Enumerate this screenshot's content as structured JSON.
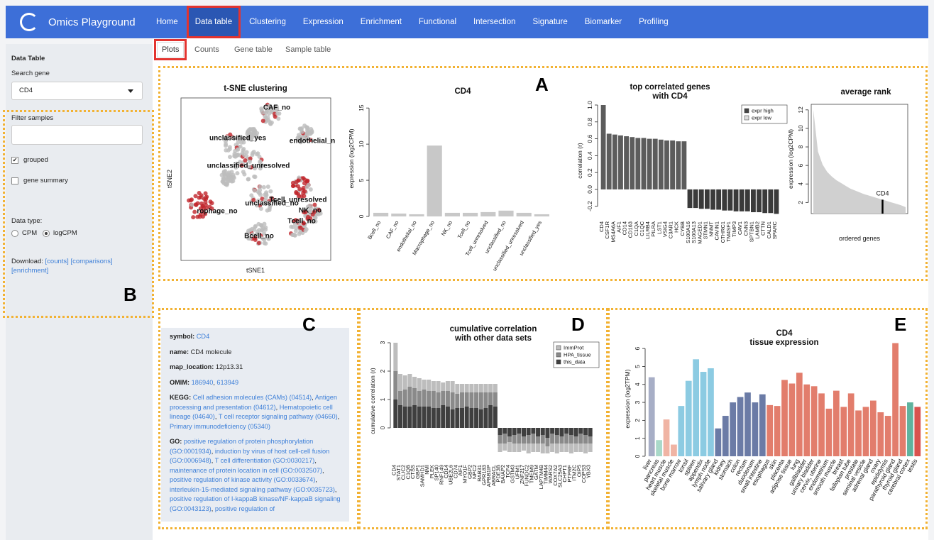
{
  "ui": {
    "brand": "Omics Playground",
    "nav": [
      "Home",
      "Data table",
      "Clustering",
      "Expression",
      "Enrichment",
      "Functional",
      "Intersection",
      "Signature",
      "Biomarker",
      "Profiling"
    ],
    "subtabs": [
      "Plots",
      "Counts",
      "Gene table",
      "Sample table"
    ],
    "sidebar": {
      "heading": "Data Table",
      "search_label": "Search gene",
      "search_value": "CD4",
      "filter_label": "Filter samples",
      "checkboxes": [
        {
          "label": "grouped",
          "checked": true
        },
        {
          "label": "gene summary",
          "checked": false
        }
      ],
      "datatype_label": "Data type:",
      "radios": [
        {
          "label": "CPM",
          "checked": false
        },
        {
          "label": "logCPM",
          "checked": true
        }
      ],
      "download_label": "Download:",
      "downloads": [
        "[counts]",
        "[comparisons]",
        "[enrichment]"
      ]
    },
    "panel_labels": [
      "A",
      "B",
      "C",
      "D",
      "E"
    ]
  },
  "gene_info": {
    "symbol": {
      "label": "symbol",
      "value": "CD4"
    },
    "name": {
      "label": "name",
      "value": "CD4 molecule"
    },
    "map_location": {
      "label": "map_location",
      "value": "12p13.31"
    },
    "omim": {
      "label": "OMIM",
      "links": [
        "186940",
        "613949"
      ]
    },
    "kegg": {
      "label": "KEGG",
      "links": [
        "Cell adhesion molecules (CAMs) (04514)",
        "Antigen processing and presentation (04612)",
        "Hematopoietic cell lineage (04640)",
        "T cell receptor signaling pathway (04660)",
        "Primary immunodeficiency (05340)"
      ]
    },
    "go": {
      "label": "GO",
      "links": [
        "positive regulation of protein phosphorylation (GO:0001934)",
        "induction by virus of host cell-cell fusion (GO:0006948)",
        "T cell differentiation (GO:0030217)",
        "maintenance of protein location in cell (GO:0032507)",
        "positive regulation of kinase activity (GO:0033674)",
        "interleukin-15-mediated signaling pathway (GO:0035723)",
        "positive regulation of I-kappaB kinase/NF-kappaB signaling (GO:0043123)",
        "positive regulation of"
      ]
    }
  },
  "chart_data": [
    {
      "type": "scatter",
      "title": "t-SNE clustering",
      "xlabel": "tSNE1",
      "ylabel": "tSNE2",
      "annotations": [
        "CAF_no",
        "unclassified_yes",
        "endothelial_n",
        "unclassified_unresolved",
        "Tcell_unresolved",
        "unclassified_no",
        "NK_no",
        "rophage_no",
        "Tcell_no",
        "Bcell_no"
      ],
      "colors": [
        "#bdbdbd",
        "#c0262c"
      ]
    },
    {
      "type": "bar",
      "title": "CD4",
      "ylabel": "expression (log2CPM)",
      "categories": [
        "Bcell_no",
        "CAF_no",
        "endothelial_no",
        "Macrophage_no",
        "NK_no",
        "Tcell_no",
        "Tcell_unresolved",
        "unclassified_no",
        "unclassified_unresolved",
        "unclassified_yes"
      ],
      "values": [
        0.5,
        0.4,
        0.3,
        9.8,
        0.5,
        0.5,
        0.6,
        0.8,
        0.5,
        0.3
      ],
      "color": "#c8c8c8",
      "ylim": [
        0,
        16
      ],
      "yticks": [
        0,
        5,
        10,
        15
      ]
    },
    {
      "type": "bar",
      "title": [
        "top correlated genes",
        "with CD4"
      ],
      "ylabel": "correlation (r)",
      "categories": [
        "CD4",
        "CSF1R",
        "MS4A6A",
        "AIF1",
        "CD14",
        "CD163",
        "C1QA",
        "C1QC",
        "LILRB4",
        "PILRA",
        "LST1",
        "VSIG4",
        "C3AR1",
        "HCK",
        "CYBB",
        "S100A16",
        "S100A13",
        "MAGED1",
        "STMN1",
        "NNMT",
        "CAVIN1",
        "CTHRC1",
        "TM4SF1",
        "TIMP3",
        "CAV1",
        "CNN3",
        "SPTBN1",
        "LAMB2",
        "CTTN",
        "CALD1",
        "SPARC"
      ],
      "values": [
        1.0,
        0.66,
        0.65,
        0.64,
        0.63,
        0.62,
        0.61,
        0.61,
        0.6,
        0.6,
        0.59,
        0.58,
        0.58,
        0.57,
        0.57,
        -0.22,
        -0.22,
        -0.23,
        -0.23,
        -0.24,
        -0.24,
        -0.25,
        -0.25,
        -0.26,
        -0.26,
        -0.26,
        -0.27,
        -0.27,
        -0.28,
        -0.28,
        -0.29
      ],
      "color": "#5c5c5c",
      "negative_color": "#3a3a3a",
      "legend": [
        {
          "name": "expr high",
          "color": "#444444"
        },
        {
          "name": "expr low",
          "color": "#dddddd"
        }
      ],
      "ylim": [
        -0.32,
        1.0
      ],
      "yticks": [
        -0.2,
        {
          "value": 0,
          "label": "0.0"
        },
        0.2,
        0.4,
        0.6,
        0.8,
        {
          "value": 1.0,
          "label": "1.0"
        }
      ]
    },
    {
      "type": "area",
      "title": "average rank",
      "ylabel": "expression (log2CPM)",
      "xlabel": "ordered genes",
      "values": [
        12,
        7.5,
        6.1,
        5.3,
        4.8,
        4.4,
        4.1,
        3.8,
        3.5,
        3.3,
        3.1,
        2.9,
        2.75,
        2.6,
        2.45,
        2.3,
        2.15,
        2.0,
        1.85,
        1.7,
        1.5
      ],
      "color": "#d0d0d0",
      "highlight": {
        "label": "CD4",
        "value": 2.3
      },
      "ylim": [
        0.8,
        12.6
      ],
      "yticks": [
        2,
        4,
        6,
        8,
        10,
        12
      ]
    },
    {
      "type": "stacked_bar",
      "title": [
        "cumulative correlation",
        "with other data sets"
      ],
      "ylabel": "cumulative correlation (r)",
      "categories": [
        "CD4",
        "STAT1",
        "CLIC2",
        "C1QB",
        "CTSS",
        "GBP1",
        "SAMHD1",
        "NMI",
        "PLEK",
        "SP140",
        "RNF149",
        "CD14",
        "UBE2L6",
        "CD74",
        "AIF1",
        "MYO1F",
        "GBP2",
        "NPC2",
        "RAB31",
        "GPR183",
        "APBB1IP",
        "ABRACL",
        "PDE3B",
        "BAIAP2",
        "TCF4",
        "GSTM3",
        "UFM1",
        "ZNF217",
        "FUNDC2",
        "TMEM9",
        "GATM",
        "LAPTM4B",
        "TIMM44",
        "WARS2",
        "COX7A2",
        "SLC25A3",
        "CHPT1",
        "PTPRF",
        "ITM2C",
        "OIP5",
        "COPS3",
        "YBX3"
      ],
      "series": [
        {
          "name": "this_data",
          "color": "#3f3f3f",
          "values": [
            1.0,
            0.8,
            0.75,
            0.75,
            0.8,
            0.75,
            0.75,
            0.75,
            0.7,
            0.7,
            0.8,
            0.75,
            0.65,
            0.7,
            0.7,
            0.75,
            0.7,
            0.7,
            0.65,
            0.7,
            0.8,
            0.75,
            -0.25,
            -0.2,
            -0.3,
            -0.25,
            -0.2,
            -0.3,
            -0.25,
            -0.2,
            -0.3,
            -0.25,
            -0.35,
            -0.2,
            -0.25,
            -0.3,
            -0.2,
            -0.25,
            -0.3,
            -0.2,
            -0.25,
            -0.3
          ]
        },
        {
          "name": "HPA_tissue",
          "color": "#8a8a8a",
          "values": [
            1.0,
            0.5,
            0.6,
            0.7,
            0.6,
            0.55,
            0.6,
            0.55,
            0.6,
            0.55,
            0.5,
            0.55,
            0.6,
            0.5,
            0.55,
            0.5,
            0.55,
            0.55,
            0.6,
            0.55,
            0.45,
            0.5,
            -0.3,
            -0.35,
            -0.2,
            -0.3,
            -0.35,
            -0.25,
            -0.3,
            -0.35,
            -0.25,
            -0.3,
            -0.3,
            -0.35,
            -0.3,
            -0.25,
            -0.35,
            -0.3,
            -0.25,
            -0.35,
            -0.3,
            -0.25
          ]
        },
        {
          "name": "ImmProt",
          "color": "#bdbdbd",
          "values": [
            1.0,
            0.6,
            0.5,
            0.45,
            0.4,
            0.45,
            0.35,
            0.4,
            0.35,
            0.4,
            0.3,
            0.35,
            0.4,
            0.35,
            0.3,
            0.3,
            0.3,
            0.3,
            0.3,
            0.3,
            0.3,
            0.3,
            -0.3,
            -0.25,
            -0.35,
            -0.3,
            -0.3,
            -0.25,
            -0.35,
            -0.3,
            -0.3,
            -0.35,
            -0.25,
            -0.3,
            -0.35,
            -0.3,
            -0.3,
            -0.35,
            -0.3,
            -0.3,
            -0.35,
            -0.3
          ]
        }
      ],
      "legend_order": [
        "ImmProt",
        "HPA_tissue",
        "this_data"
      ],
      "ylim": [
        -1.2,
        3.1
      ],
      "yticks": [
        0,
        1,
        2,
        3
      ]
    },
    {
      "type": "bar",
      "title": [
        "CD4",
        "tissue expression"
      ],
      "ylabel": "expression (log2TPM)",
      "categories": [
        "liver",
        "pancreas",
        "heart muscle",
        "skeletal muscle",
        "bone marrow",
        "tonsil",
        "spleen",
        "appendix",
        "lymph node",
        "salivary gland",
        "kidney",
        "stomach",
        "colon",
        "rectum",
        "duodenum",
        "small intestine",
        "esophagus",
        "skin",
        "placenta",
        "adipose tissue",
        "lung",
        "gallbladder",
        "urinary bladder",
        "cervix, uterine",
        "endometrium",
        "smooth muscle",
        "breast",
        "fallopian tube",
        "prostate",
        "seminal vesicle",
        "adrenal gland",
        "ovary",
        "epididymis",
        "parathyroid gland",
        "thyroid gland",
        "cerebral cortex",
        "testis"
      ],
      "values": [
        4.4,
        0.9,
        2.05,
        0.65,
        2.8,
        4.2,
        5.4,
        4.7,
        4.9,
        1.55,
        2.25,
        3.0,
        3.3,
        3.55,
        3.0,
        3.45,
        2.85,
        2.8,
        4.25,
        4.05,
        4.65,
        4.0,
        3.9,
        3.5,
        2.65,
        3.65,
        2.75,
        3.5,
        2.55,
        2.75,
        3.1,
        2.45,
        2.25,
        6.3,
        2.8,
        3.0,
        2.75
      ],
      "colors": [
        "#a7aec6",
        "#a9d9c9",
        "#f0b4a4",
        "#f0b4a4",
        "#8ccbe2",
        "#8ccbe2",
        "#8ccbe2",
        "#8ccbe2",
        "#8ccbe2",
        "#6b7ba6",
        "#6b7ba6",
        "#6b7ba6",
        "#6b7ba6",
        "#6b7ba6",
        "#6b7ba6",
        "#6b7ba6",
        "#e27d6c",
        "#e27d6c",
        "#e27d6c",
        "#e27d6c",
        "#e27d6c",
        "#e27d6c",
        "#e27d6c",
        "#e27d6c",
        "#e27d6c",
        "#e27d6c",
        "#e27d6c",
        "#e27d6c",
        "#e27d6c",
        "#e27d6c",
        "#e27d6c",
        "#e27d6c",
        "#e27d6c",
        "#e27d6c",
        "#e27d6c",
        "#5fb39e",
        "#d9534f"
      ],
      "ylim": [
        0,
        6.4
      ],
      "yticks": [
        0,
        1,
        2,
        3,
        4,
        5,
        6
      ]
    }
  ]
}
